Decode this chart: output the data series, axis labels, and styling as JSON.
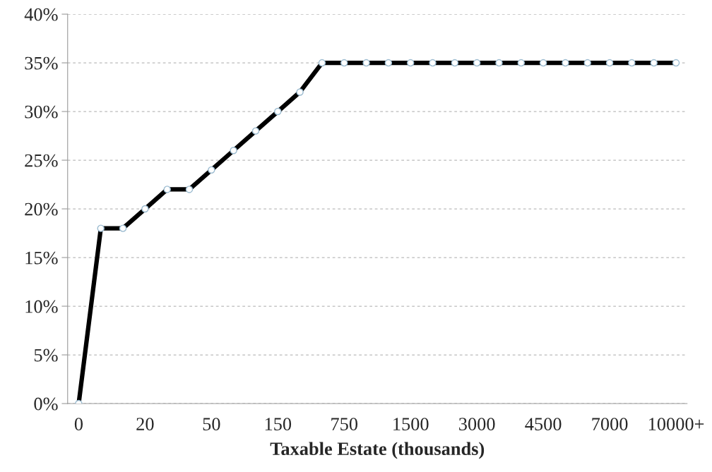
{
  "chart_data": {
    "type": "line",
    "categories": [
      "0",
      null,
      null,
      "20",
      null,
      null,
      "50",
      null,
      null,
      "150",
      null,
      null,
      "750",
      null,
      null,
      "1500",
      null,
      null,
      "3000",
      null,
      null,
      "4500",
      null,
      null,
      "7000",
      null,
      null,
      "10000+"
    ],
    "series": [
      {
        "color": "#000000",
        "values": [
          0,
          18,
          18,
          20,
          22,
          22,
          24,
          26,
          28,
          30,
          32,
          35,
          35,
          35,
          35,
          35,
          35,
          35,
          35,
          35,
          35,
          35,
          35,
          35,
          35,
          35,
          35,
          35
        ]
      }
    ],
    "xlabel": "Taxable Estate (thousands)",
    "ylim": [
      0,
      40
    ],
    "yticks": [
      {
        "value": 0,
        "label": "0%"
      },
      {
        "value": 5,
        "label": "5%"
      },
      {
        "value": 10,
        "label": "10%"
      },
      {
        "value": 15,
        "label": "15%"
      },
      {
        "value": 20,
        "label": "20%"
      },
      {
        "value": 25,
        "label": "25%"
      },
      {
        "value": 30,
        "label": "30%"
      },
      {
        "value": 35,
        "label": "35%"
      },
      {
        "value": 40,
        "label": "40%"
      }
    ],
    "grid": "y",
    "marker": "circle",
    "line_style": "solid",
    "legend": false
  }
}
